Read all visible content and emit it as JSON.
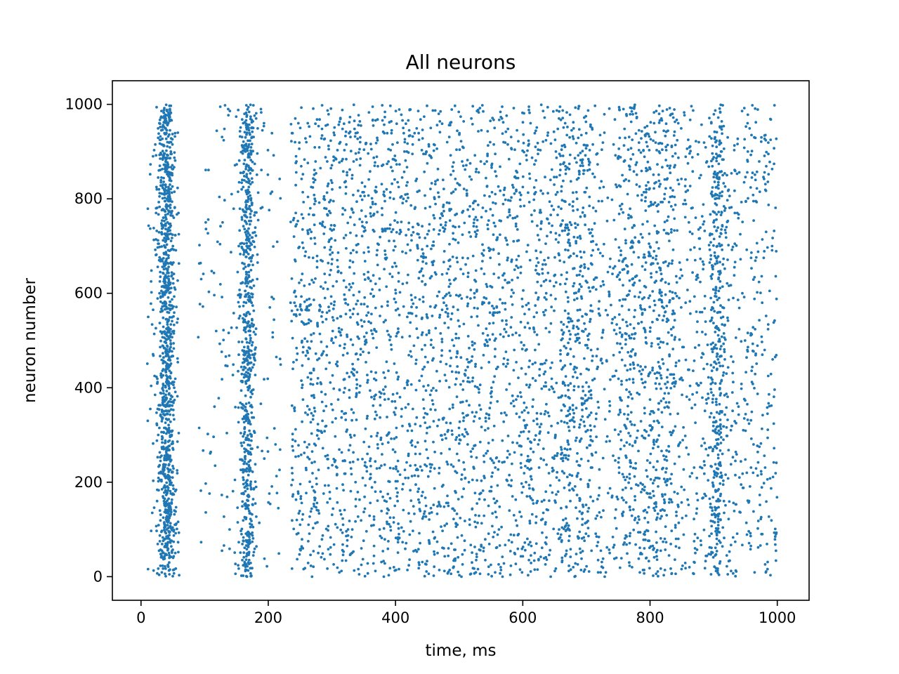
{
  "chart_data": {
    "type": "scatter",
    "title": "All neurons",
    "xlabel": "time, ms",
    "ylabel": "neuron number",
    "xlim": [
      -45,
      1050
    ],
    "ylim": [
      -50,
      1050
    ],
    "xticks": [
      0,
      200,
      400,
      600,
      800,
      1000
    ],
    "yticks": [
      0,
      200,
      400,
      600,
      800,
      1000
    ],
    "grid": false,
    "legend": "none",
    "point_color": "#1f77b4",
    "series": [
      {
        "description_of_density": "raster of spikes, ~1000 neurons over 0–1000 ms",
        "bursts": [
          {
            "center_ms": 40,
            "width_ms": 6,
            "count": 900
          },
          {
            "center_ms": 167,
            "width_ms": 6,
            "count": 650
          },
          {
            "center_ms": 905,
            "width_ms": 6,
            "count": 350
          }
        ],
        "background_segments": [
          {
            "start_ms": 10,
            "end_ms": 60,
            "count": 200
          },
          {
            "start_ms": 90,
            "end_ms": 220,
            "count": 200
          },
          {
            "start_ms": 235,
            "end_ms": 660,
            "count": 2600
          },
          {
            "start_ms": 660,
            "end_ms": 710,
            "count": 480
          },
          {
            "start_ms": 710,
            "end_ms": 750,
            "count": 150
          },
          {
            "start_ms": 750,
            "end_ms": 840,
            "count": 780
          },
          {
            "start_ms": 840,
            "end_ms": 1000,
            "count": 650
          }
        ]
      }
    ]
  }
}
